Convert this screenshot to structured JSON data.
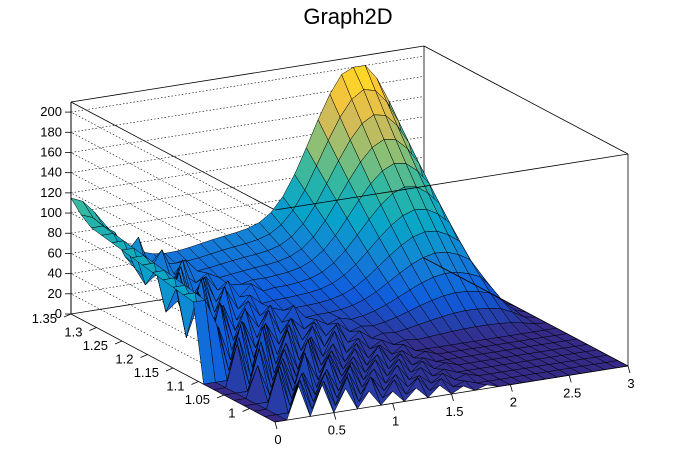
{
  "chart_data": {
    "type": "surface",
    "title": "Graph2D",
    "x": {
      "label": "",
      "range": [
        0,
        3
      ],
      "ticks": [
        "0",
        "0.5",
        "1",
        "1.5",
        "2",
        "2.5",
        "3"
      ],
      "tick_values": [
        0,
        0.5,
        1,
        1.5,
        2,
        2.5,
        3
      ]
    },
    "y": {
      "label": "",
      "range": [
        0.95,
        1.35
      ],
      "ticks": [
        "1",
        "1.05",
        "1.1",
        "1.15",
        "1.2",
        "1.25",
        "1.3",
        "1.35"
      ],
      "tick_values": [
        1,
        1.05,
        1.1,
        1.15,
        1.2,
        1.25,
        1.3,
        1.35
      ]
    },
    "z": {
      "label": "",
      "range": [
        0,
        210
      ],
      "ticks": [
        "0",
        "20",
        "40",
        "60",
        "80",
        "100",
        "120",
        "140",
        "160",
        "180",
        "200"
      ],
      "tick_values": [
        0,
        20,
        40,
        60,
        80,
        100,
        120,
        140,
        160,
        180,
        200
      ]
    },
    "grid": true,
    "colormap": [
      "#352a87",
      "#0f5cdd",
      "#1481d6",
      "#06a4ca",
      "#2eb7a4",
      "#87bf77",
      "#d1bb59",
      "#fec832",
      "#f9fb0e"
    ],
    "features": {
      "back_wall_ridge": {
        "description_values": {
          "z_at_x0": 100,
          "peak_z": 195,
          "peak_x": 2.45,
          "plateau_z": 130
        }
      }
    }
  }
}
